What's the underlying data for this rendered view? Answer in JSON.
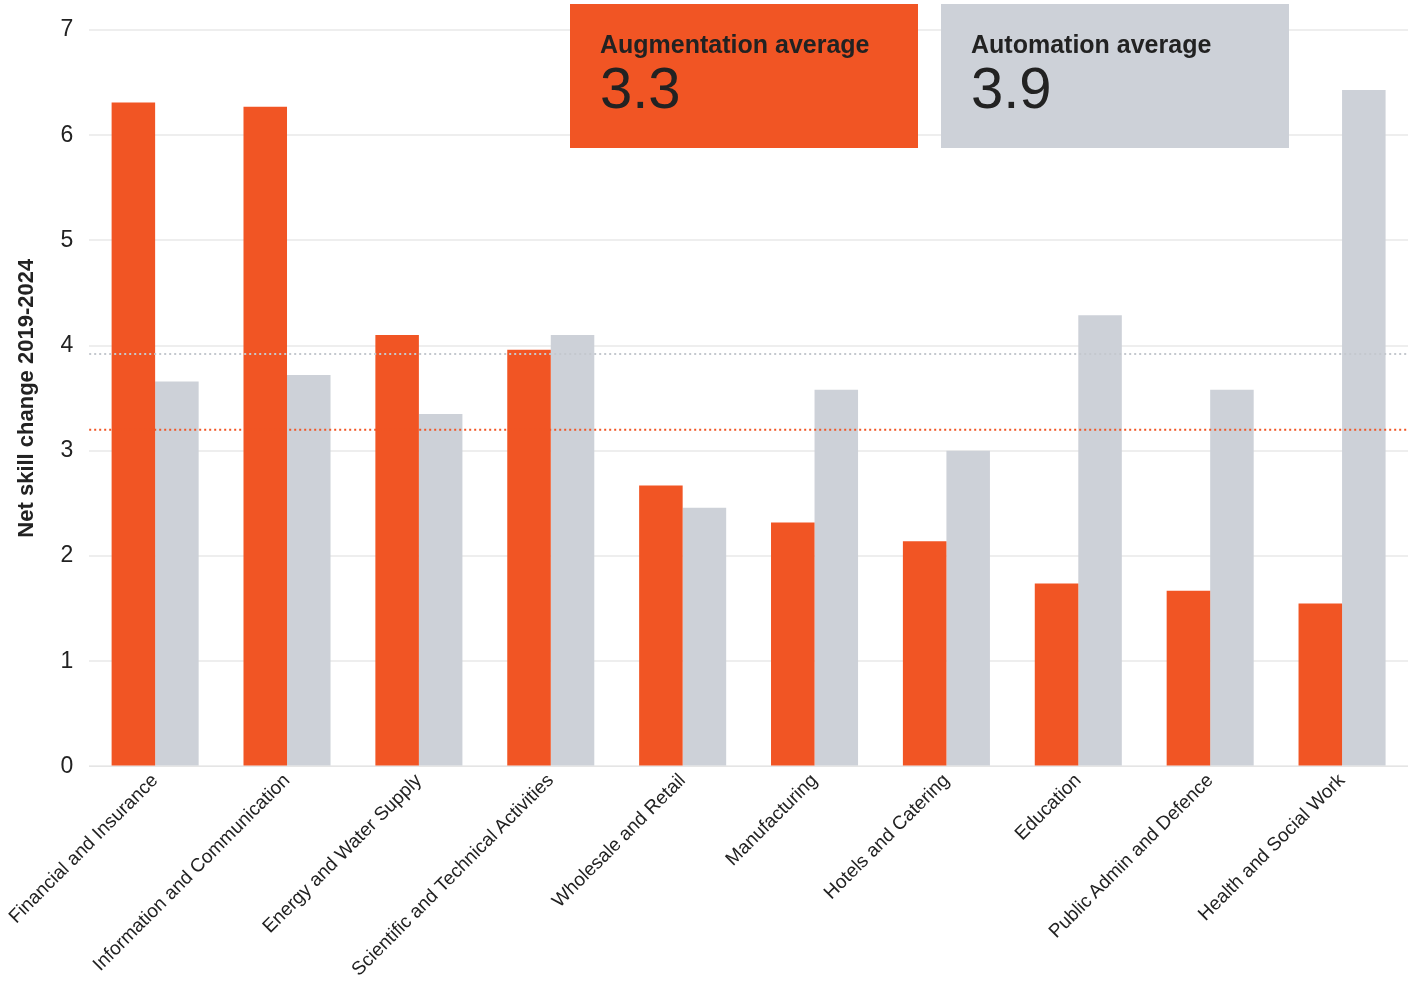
{
  "chart_data": {
    "type": "bar",
    "ylabel": "Net skill change 2019-2024",
    "categories": [
      "Financial and Insurance",
      "Information and Communication",
      "Energy and Water Supply",
      "Scientific and Technical Activities",
      "Wholesale and Retail",
      "Manufacturing",
      "Hotels and Catering",
      "Education",
      "Public Admin and Defence",
      "Health and Social Work"
    ],
    "series": [
      {
        "color": "#f15524",
        "values": [
          6.31,
          6.27,
          4.1,
          3.96,
          2.67,
          2.32,
          2.14,
          1.74,
          1.67,
          1.55
        ]
      },
      {
        "color": "#cdd1d8",
        "values": [
          3.66,
          3.72,
          3.35,
          4.1,
          2.46,
          3.58,
          3.0,
          4.29,
          3.58,
          6.43
        ]
      }
    ],
    "ylim": [
      0,
      7
    ],
    "yticks": [
      0,
      1,
      2,
      3,
      4,
      5,
      6,
      7
    ],
    "grid": "y",
    "ref_lines": [
      {
        "axis": "y",
        "value": 3.2,
        "color": "#f15524",
        "line_style": "dotted"
      },
      {
        "axis": "y",
        "value": 3.92,
        "color": "#c4c8ce",
        "line_style": "dotted"
      }
    ],
    "annotations": [
      "Augmentation average",
      "3.3",
      "Automation average",
      "3.9"
    ]
  }
}
